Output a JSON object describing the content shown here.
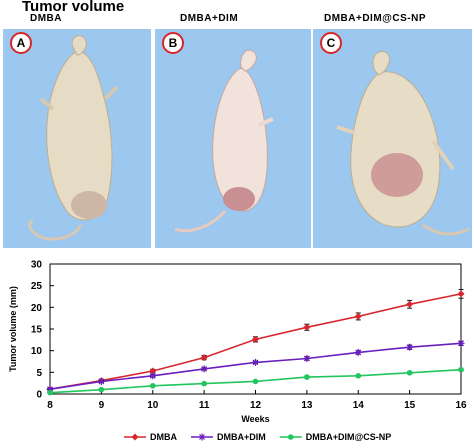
{
  "figure": {
    "title": "Tumor volume",
    "panels": [
      {
        "letter": "A",
        "label": "DMBA"
      },
      {
        "letter": "B",
        "label": "DMBA+DIM"
      },
      {
        "letter": "C",
        "label": "DMBA+DIM@CS-NP"
      }
    ]
  },
  "colors": {
    "panel_bg": "#9cc7ee",
    "badge_ring": "#d9262c",
    "dmba": "#d9262c",
    "dim": "#6a1fbf",
    "csnp": "#22c55e"
  },
  "chart_data": {
    "type": "line",
    "xlabel": "Weeks",
    "ylabel": "Tumor volume (mm)",
    "x": [
      8,
      9,
      10,
      11,
      12,
      13,
      14,
      15,
      16
    ],
    "xlim": [
      8,
      16
    ],
    "ylim": [
      0,
      30
    ],
    "yticks": [
      0,
      5,
      10,
      15,
      20,
      25,
      30
    ],
    "grid": false,
    "legend_position": "bottom",
    "series": [
      {
        "name": "DMBA",
        "color": "#d9262c",
        "marker": "diamond",
        "values": [
          1.1,
          3.1,
          5.3,
          8.4,
          12.6,
          15.4,
          17.9,
          20.7,
          23.1
        ],
        "errors": [
          0.2,
          0.3,
          0.4,
          0.5,
          0.6,
          0.7,
          0.8,
          0.9,
          1.0
        ]
      },
      {
        "name": "DMBA+DIM",
        "color": "#6a1fbf",
        "marker": "asterisk",
        "values": [
          1.1,
          2.9,
          4.2,
          5.8,
          7.3,
          8.2,
          9.6,
          10.8,
          11.7
        ],
        "errors": [
          0.2,
          0.2,
          0.3,
          0.3,
          0.3,
          0.4,
          0.4,
          0.5,
          0.5
        ]
      },
      {
        "name": "DMBA+DIM@CS-NP",
        "color": "#22c55e",
        "marker": "circle",
        "values": [
          0.3,
          1.0,
          1.9,
          2.4,
          2.9,
          3.9,
          4.2,
          4.9,
          5.6
        ],
        "errors": [
          0.1,
          0.1,
          0.1,
          0.2,
          0.2,
          0.2,
          0.2,
          0.2,
          0.3
        ]
      }
    ]
  }
}
